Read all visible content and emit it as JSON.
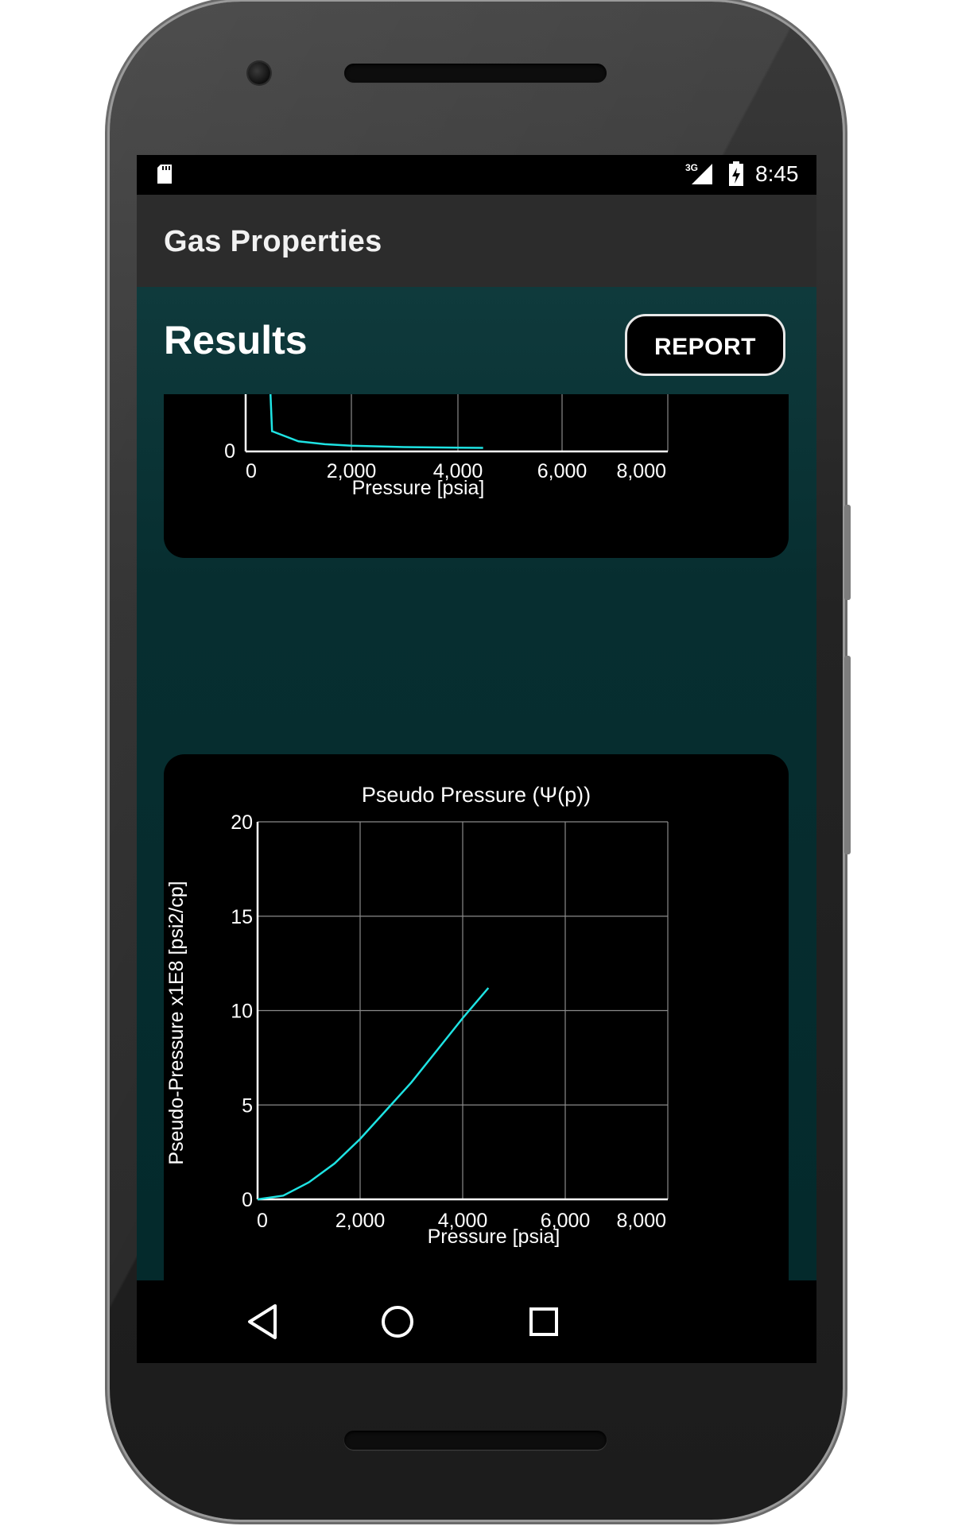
{
  "status_bar": {
    "network": "3G",
    "time": "8:45",
    "icons": [
      "sd-card-icon",
      "signal-icon",
      "battery-icon"
    ]
  },
  "app_bar": {
    "title": "Gas Properties"
  },
  "results": {
    "title": "Results",
    "report_button": "REPORT"
  },
  "chart_top": {
    "x_tick_labels": [
      "0",
      "2,000",
      "4,000",
      "6,000",
      "8,000"
    ],
    "y_tick_labels": [
      "0"
    ],
    "x_axis_label": "Pressure [psia]"
  },
  "chart_data": [
    {
      "type": "line",
      "title": "",
      "xlabel": "Pressure [psia]",
      "ylabel": "",
      "xlim": [
        0,
        8000
      ],
      "grid": true,
      "line_color": "#1ee3e3",
      "x": [
        400,
        500,
        1000,
        1500,
        2000,
        2500,
        3000,
        3500,
        4000,
        4500
      ],
      "y": [
        1.0,
        0.14,
        0.07,
        0.05,
        0.04,
        0.035,
        0.03,
        0.028,
        0.026,
        0.025
      ],
      "note_visible_portion_only": true
    },
    {
      "type": "line",
      "title": "Pseudo Pressure (Ψ(p))",
      "xlabel": "Pressure [psia]",
      "ylabel": "Pseudo-Pressure x1E8 [psi2/cp]",
      "xlim": [
        0,
        8000
      ],
      "ylim": [
        0,
        20
      ],
      "x_tick_labels": [
        "0",
        "2,000",
        "4,000",
        "6,000",
        "8,000"
      ],
      "y_tick_labels": [
        "0",
        "5",
        "10",
        "15",
        "20"
      ],
      "grid": true,
      "line_color": "#1ee3e3",
      "x": [
        0,
        500,
        1000,
        1500,
        2000,
        2500,
        3000,
        3500,
        4000,
        4500
      ],
      "y": [
        0,
        0.2,
        0.9,
        1.9,
        3.2,
        4.7,
        6.2,
        7.9,
        9.6,
        11.2
      ]
    }
  ],
  "nav_bar": {
    "buttons": [
      "back-icon",
      "home-icon",
      "recents-icon"
    ]
  }
}
